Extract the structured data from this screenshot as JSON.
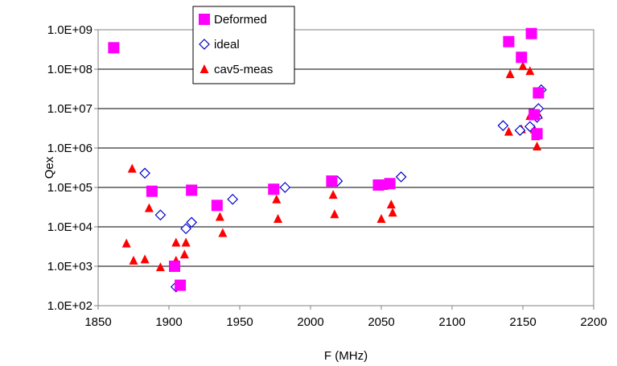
{
  "chart_data": {
    "type": "scatter",
    "xlabel": "F (MHz)",
    "ylabel": "Qex",
    "xlim": [
      1850,
      2200
    ],
    "ylim": [
      100,
      1000000000
    ],
    "yscale": "log",
    "xticks": [
      1850,
      1900,
      1950,
      2000,
      2050,
      2100,
      2150,
      2200
    ],
    "yticks": [
      {
        "value": 100,
        "label": "1.0E+02"
      },
      {
        "value": 1000,
        "label": "1.0E+03"
      },
      {
        "value": 10000,
        "label": "1.0E+04"
      },
      {
        "value": 100000,
        "label": "1.0E+05"
      },
      {
        "value": 1000000,
        "label": "1.0E+06"
      },
      {
        "value": 10000000,
        "label": "1.0E+07"
      },
      {
        "value": 100000000,
        "label": "1.0E+08"
      },
      {
        "value": 1000000000,
        "label": "1.0E+09"
      }
    ],
    "grid": "horizontal",
    "legend_position": "top-center",
    "series": [
      {
        "name": "Deformed",
        "marker": "square",
        "color": "#ff00ff",
        "points": [
          [
            1861,
            350000000
          ],
          [
            1888,
            80000
          ],
          [
            1904,
            1000
          ],
          [
            1908,
            330
          ],
          [
            1916,
            85000
          ],
          [
            1934,
            35000
          ],
          [
            1974,
            90000
          ],
          [
            2015,
            145000
          ],
          [
            2048,
            115000
          ],
          [
            2056,
            125000
          ],
          [
            2140,
            500000000
          ],
          [
            2156,
            800000000
          ],
          [
            2149,
            200000000
          ],
          [
            2161,
            25000000
          ],
          [
            2158,
            7000000
          ],
          [
            2160,
            2300000
          ]
        ]
      },
      {
        "name": "ideal",
        "marker": "diamond-open",
        "color": "#0000cc",
        "points": [
          [
            1883,
            230000
          ],
          [
            1894,
            20000
          ],
          [
            1905,
            300
          ],
          [
            1912,
            9000
          ],
          [
            1916,
            13000
          ],
          [
            1945,
            50000
          ],
          [
            1982,
            100000
          ],
          [
            2019,
            145000
          ],
          [
            2055,
            125000
          ],
          [
            2064,
            185000
          ],
          [
            2136,
            3700000
          ],
          [
            2148,
            2800000
          ],
          [
            2155,
            3500000
          ],
          [
            2160,
            6000000
          ],
          [
            2161,
            10000000
          ],
          [
            2163,
            30000000
          ]
        ]
      },
      {
        "name": "cav5-meas",
        "marker": "triangle",
        "color": "#ff0000",
        "points": [
          [
            1870,
            3800
          ],
          [
            1874,
            300000
          ],
          [
            1875,
            1400
          ],
          [
            1883,
            1500
          ],
          [
            1886,
            30000
          ],
          [
            1894,
            950
          ],
          [
            1905,
            4000
          ],
          [
            1905,
            1400
          ],
          [
            1911,
            2000
          ],
          [
            1912,
            4000
          ],
          [
            1936,
            18000
          ],
          [
            1938,
            7000
          ],
          [
            1976,
            50000
          ],
          [
            1977,
            16000
          ],
          [
            2016,
            65000
          ],
          [
            2017,
            21000
          ],
          [
            2050,
            16000
          ],
          [
            2052,
            110000
          ],
          [
            2057,
            37000
          ],
          [
            2058,
            23000
          ],
          [
            2140,
            2600000
          ],
          [
            2141,
            75000000
          ],
          [
            2149,
            3000000
          ],
          [
            2150,
            120000000
          ],
          [
            2155,
            90000000
          ],
          [
            2155,
            6500000
          ],
          [
            2158,
            3000000
          ],
          [
            2159,
            2000000
          ],
          [
            2160,
            1100000
          ],
          [
            2161,
            7000000
          ]
        ]
      }
    ]
  }
}
